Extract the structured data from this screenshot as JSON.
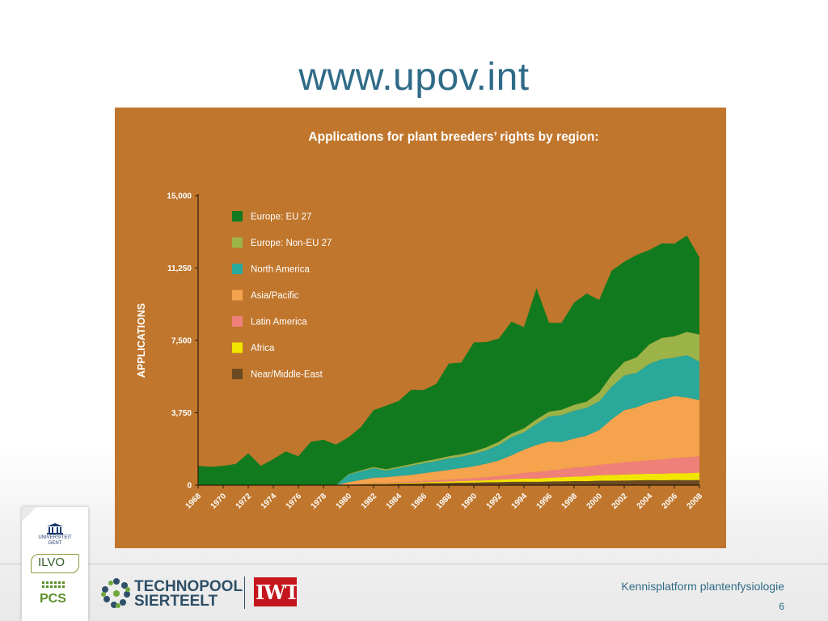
{
  "slide": {
    "title": "www.upov.int",
    "footer_text": "Kennisplatform plantenfysiologie",
    "page_number": "6"
  },
  "logos": {
    "ugent_line1": "UNIVERSITEIT",
    "ugent_line2": "GENT",
    "ilvo": "ILVO",
    "pcs": "PCS",
    "technopool_line1": "TECHNOPOOL",
    "technopool_line2": "SIERTEELT",
    "iwt": "IWT"
  },
  "colors": {
    "panel_background": "#c0762c",
    "title": "#2f6b87"
  },
  "chart_data": {
    "type": "area",
    "stacked": true,
    "title": "Applications for plant breeders’ rights by region:",
    "xlabel": "",
    "ylabel": "APPLICATIONS",
    "ylim": [
      0,
      15000
    ],
    "y_ticks": [
      0,
      3750,
      7500,
      11250,
      15000
    ],
    "y_tick_labels": [
      "0",
      "3,750",
      "7,500",
      "11,250",
      "15,000"
    ],
    "x_tick_labels": [
      "1968",
      "1970",
      "1972",
      "1974",
      "1976",
      "1978",
      "1980",
      "1982",
      "1984",
      "1986",
      "1988",
      "1990",
      "1992",
      "1994",
      "1996",
      "1998",
      "2000",
      "2002",
      "2004",
      "2006",
      "2008"
    ],
    "legend_position": "top-left",
    "x": [
      1968,
      1969,
      1970,
      1971,
      1972,
      1973,
      1974,
      1975,
      1976,
      1977,
      1978,
      1979,
      1980,
      1981,
      1982,
      1983,
      1984,
      1985,
      1986,
      1987,
      1988,
      1989,
      1990,
      1991,
      1992,
      1993,
      1994,
      1995,
      1996,
      1997,
      1998,
      1999,
      2000,
      2001,
      2002,
      2003,
      2004,
      2005,
      2006,
      2007,
      2008
    ],
    "series": [
      {
        "name": "Near/Middle-East",
        "color": "#6b4a22",
        "values": [
          0,
          0,
          0,
          0,
          0,
          0,
          0,
          0,
          0,
          0,
          0,
          0,
          20,
          40,
          60,
          60,
          80,
          80,
          100,
          110,
          120,
          130,
          140,
          150,
          160,
          170,
          180,
          170,
          190,
          200,
          210,
          210,
          230,
          230,
          240,
          250,
          260,
          250,
          270,
          260,
          270
        ]
      },
      {
        "name": "Africa",
        "color": "#f2e600",
        "values": [
          0,
          0,
          0,
          0,
          0,
          0,
          0,
          0,
          0,
          0,
          0,
          0,
          10,
          20,
          30,
          30,
          40,
          40,
          50,
          60,
          70,
          80,
          90,
          100,
          120,
          140,
          160,
          170,
          190,
          210,
          230,
          250,
          280,
          300,
          310,
          320,
          330,
          340,
          350,
          360,
          380
        ]
      },
      {
        "name": "Latin America",
        "color": "#ef8079",
        "values": [
          0,
          0,
          0,
          0,
          0,
          0,
          0,
          0,
          0,
          0,
          0,
          0,
          20,
          30,
          40,
          40,
          50,
          60,
          70,
          80,
          100,
          120,
          140,
          160,
          200,
          230,
          300,
          340,
          380,
          420,
          470,
          500,
          540,
          580,
          630,
          660,
          700,
          740,
          790,
          820,
          850
        ]
      },
      {
        "name": "Asia/Pacific",
        "color": "#f5a34c",
        "values": [
          0,
          0,
          0,
          0,
          0,
          0,
          0,
          0,
          0,
          0,
          0,
          0,
          100,
          180,
          250,
          280,
          300,
          350,
          400,
          450,
          500,
          550,
          600,
          700,
          800,
          1000,
          1200,
          1400,
          1500,
          1400,
          1500,
          1600,
          1800,
          2300,
          2700,
          2800,
          3000,
          3100,
          3200,
          3100,
          2900
        ]
      },
      {
        "name": "North America",
        "color": "#2aa89a",
        "values": [
          0,
          0,
          0,
          0,
          0,
          0,
          0,
          0,
          0,
          0,
          0,
          0,
          400,
          450,
          500,
          350,
          420,
          480,
          520,
          550,
          600,
          600,
          650,
          700,
          800,
          950,
          900,
          1100,
          1300,
          1400,
          1450,
          1450,
          1500,
          1700,
          1800,
          1800,
          2000,
          2100,
          2000,
          2200,
          2000
        ]
      },
      {
        "name": "Europe: Non-EU 27",
        "color": "#9cb348",
        "values": [
          0,
          0,
          0,
          0,
          0,
          0,
          0,
          0,
          0,
          0,
          0,
          0,
          30,
          50,
          60,
          60,
          70,
          80,
          90,
          100,
          110,
          120,
          130,
          150,
          170,
          180,
          200,
          230,
          250,
          280,
          300,
          320,
          450,
          600,
          700,
          800,
          1000,
          1100,
          1100,
          1200,
          1400
        ]
      },
      {
        "name": "Europe: EU 27",
        "color": "#127a1e",
        "values": [
          1000,
          950,
          1000,
          1100,
          1650,
          1000,
          1350,
          1750,
          1500,
          2250,
          2350,
          2100,
          1900,
          2250,
          2950,
          3300,
          3400,
          3850,
          3700,
          3900,
          4800,
          4750,
          5650,
          5450,
          5350,
          5800,
          5250,
          6800,
          4600,
          4500,
          5300,
          5600,
          4800,
          5400,
          5200,
          5300,
          4900,
          4900,
          4800,
          5000,
          4000
        ]
      }
    ]
  }
}
